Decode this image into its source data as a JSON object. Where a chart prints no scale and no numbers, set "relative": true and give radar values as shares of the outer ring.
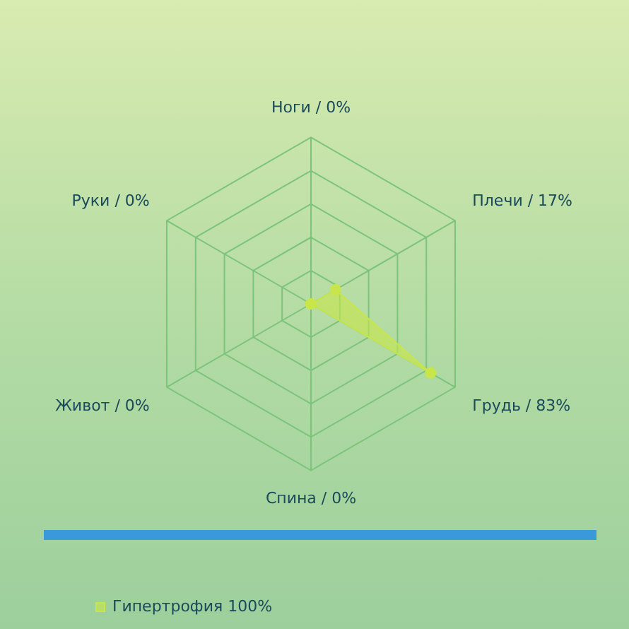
{
  "chart_data": {
    "type": "radar",
    "relative": true,
    "categories": [
      "Ноги / 0%",
      "Плечи / 17%",
      "Грудь / 83%",
      "Спина / 0%",
      "Живот / 0%",
      "Руки / 0%"
    ],
    "series": [
      {
        "name": "Гипертрофия 100%",
        "color": "#c8e64a",
        "values": [
          0,
          0.17,
          0.83,
          0,
          0,
          0
        ]
      }
    ],
    "legend": "bottom left",
    "grid": true,
    "marker": "circle"
  }
}
